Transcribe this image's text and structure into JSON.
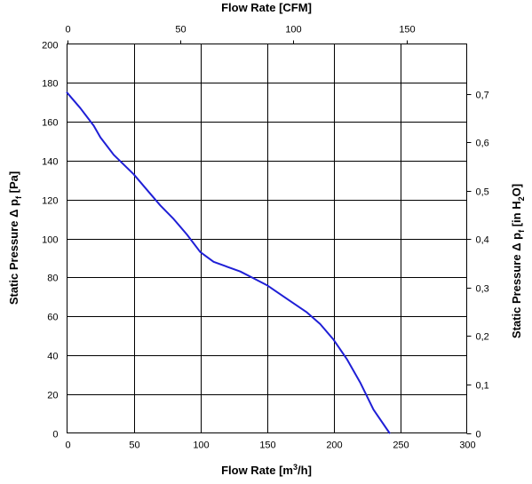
{
  "chart_data": {
    "type": "line",
    "title": "",
    "grid": true,
    "axes": {
      "bottom": {
        "label_main": "Flow Rate [m",
        "label_sup": "3",
        "label_tail": "/h]",
        "range": [
          0,
          300
        ],
        "ticks": [
          0,
          50,
          100,
          150,
          200,
          250,
          300
        ]
      },
      "top": {
        "label": "Flow Rate [CFM]",
        "ticks": [
          0,
          50,
          100,
          150
        ],
        "cfm_per_m3h": 0.588578
      },
      "left": {
        "label_main": "Static Pressure Δ p",
        "label_sub": "f",
        "label_tail": " [Pa]",
        "range": [
          0,
          200
        ],
        "ticks": [
          0,
          20,
          40,
          60,
          80,
          100,
          120,
          140,
          160,
          180,
          200
        ]
      },
      "right": {
        "label_main": "Static Pressure Δ p",
        "label_sub": "f",
        "label_mid": " [in H",
        "label_sub2": "2",
        "label_tail": "O]",
        "ticks": [
          "0",
          "0,1",
          "0,2",
          "0,3",
          "0,4",
          "0,5",
          "0,6",
          "0,7"
        ],
        "tick_values": [
          0,
          0.1,
          0.2,
          0.3,
          0.4,
          0.5,
          0.6,
          0.7
        ],
        "pa_per_inh2o": 249.0889
      }
    },
    "series": [
      {
        "color": "#1f1fd6",
        "x": [
          0,
          10,
          20,
          25,
          35,
          50,
          60,
          70,
          80,
          90,
          100,
          110,
          120,
          130,
          140,
          150,
          165,
          180,
          190,
          200,
          210,
          220,
          230,
          242
        ],
        "y": [
          175,
          167,
          158,
          152,
          143,
          133,
          125,
          117,
          110,
          102,
          93,
          88,
          85.5,
          83,
          79.5,
          76,
          69,
          62,
          56,
          48,
          38,
          26,
          12,
          0
        ]
      }
    ]
  }
}
